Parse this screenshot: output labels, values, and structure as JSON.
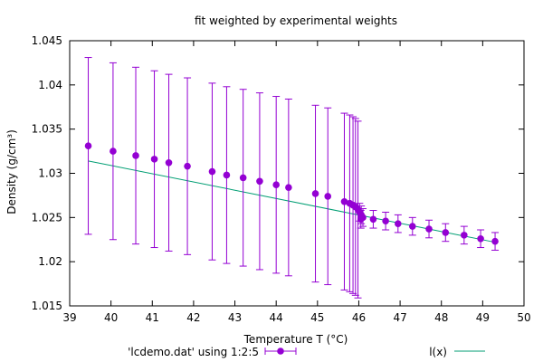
{
  "chart_data": {
    "type": "scatter",
    "title": "fit weighted by experimental weights",
    "xlabel": "Temperature T (°C)",
    "ylabel": "Density (g/cm³)",
    "xlim": [
      39,
      50
    ],
    "ylim": [
      1.015,
      1.045
    ],
    "x_ticks": [
      39,
      40,
      41,
      42,
      43,
      44,
      45,
      46,
      47,
      48,
      49,
      50
    ],
    "y_ticks": [
      1.015,
      1.02,
      1.025,
      1.03,
      1.035,
      1.04,
      1.045
    ],
    "y_tick_labels": [
      "1.015",
      "1.02",
      "1.025",
      "1.03",
      "1.035",
      "1.04",
      "1.045"
    ],
    "legend_position": "bottom",
    "colors": {
      "data": "#9400d3",
      "fit": "#009e73"
    },
    "series": [
      {
        "name": "'lcdemo.dat' using 1:2:5",
        "style": "points-with-errorbars",
        "points": [
          {
            "x": 39.45,
            "y": 1.0331,
            "err": 0.01
          },
          {
            "x": 40.05,
            "y": 1.0325,
            "err": 0.01
          },
          {
            "x": 40.6,
            "y": 1.032,
            "err": 0.01
          },
          {
            "x": 41.05,
            "y": 1.0316,
            "err": 0.01
          },
          {
            "x": 41.4,
            "y": 1.0312,
            "err": 0.01
          },
          {
            "x": 41.85,
            "y": 1.0308,
            "err": 0.01
          },
          {
            "x": 42.45,
            "y": 1.0302,
            "err": 0.01
          },
          {
            "x": 42.8,
            "y": 1.0298,
            "err": 0.01
          },
          {
            "x": 43.2,
            "y": 1.0295,
            "err": 0.01
          },
          {
            "x": 43.6,
            "y": 1.0291,
            "err": 0.01
          },
          {
            "x": 44.0,
            "y": 1.0287,
            "err": 0.01
          },
          {
            "x": 44.3,
            "y": 1.0284,
            "err": 0.01
          },
          {
            "x": 44.95,
            "y": 1.0277,
            "err": 0.01
          },
          {
            "x": 45.25,
            "y": 1.0274,
            "err": 0.01
          },
          {
            "x": 45.65,
            "y": 1.0268,
            "err": 0.01
          },
          {
            "x": 45.78,
            "y": 1.0266,
            "err": 0.01
          },
          {
            "x": 45.86,
            "y": 1.0264,
            "err": 0.01
          },
          {
            "x": 45.92,
            "y": 1.0262,
            "err": 0.01
          },
          {
            "x": 45.98,
            "y": 1.0259,
            "err": 0.01
          },
          {
            "x": 46.02,
            "y": 1.0256,
            "err": 0.001
          },
          {
            "x": 46.06,
            "y": 1.0253,
            "err": 0.001
          },
          {
            "x": 46.1,
            "y": 1.025,
            "err": 0.001
          },
          {
            "x": 46.05,
            "y": 1.0248,
            "err": 0.001
          },
          {
            "x": 46.35,
            "y": 1.0248,
            "err": 0.001
          },
          {
            "x": 46.65,
            "y": 1.0246,
            "err": 0.001
          },
          {
            "x": 46.95,
            "y": 1.0243,
            "err": 0.001
          },
          {
            "x": 47.3,
            "y": 1.024,
            "err": 0.001
          },
          {
            "x": 47.7,
            "y": 1.0237,
            "err": 0.001
          },
          {
            "x": 48.1,
            "y": 1.0233,
            "err": 0.001
          },
          {
            "x": 48.55,
            "y": 1.023,
            "err": 0.001
          },
          {
            "x": 48.95,
            "y": 1.0226,
            "err": 0.001
          },
          {
            "x": 49.3,
            "y": 1.0223,
            "err": 0.001
          }
        ]
      },
      {
        "name": "l(x)",
        "style": "line",
        "points": [
          {
            "x": 39.45,
            "y": 1.0314
          },
          {
            "x": 49.3,
            "y": 1.0222
          }
        ]
      }
    ]
  }
}
